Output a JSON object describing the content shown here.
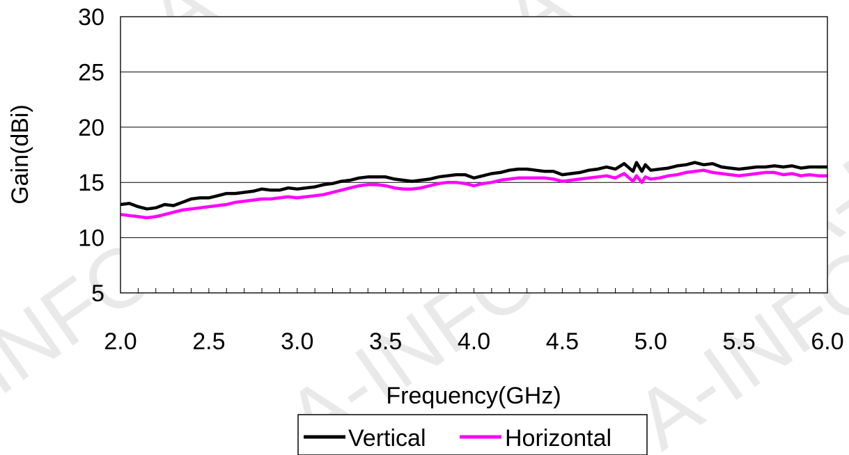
{
  "watermark": "A-INFO",
  "chart_data": {
    "type": "line",
    "title": "",
    "xlabel": "Frequency(GHz)",
    "ylabel": "Gain(dBi)",
    "xlim": [
      2.0,
      6.0
    ],
    "ylim": [
      5,
      30
    ],
    "x_ticks": [
      "2.0",
      "2.5",
      "3.0",
      "3.5",
      "4.0",
      "4.5",
      "5.0",
      "5.5",
      "6.0"
    ],
    "y_ticks": [
      "5",
      "10",
      "15",
      "20",
      "25",
      "30"
    ],
    "grid": "horizontal",
    "legend_position": "bottom",
    "series": [
      {
        "name": "Vertical",
        "color": "#000000",
        "points": [
          [
            2.0,
            13.0
          ],
          [
            2.05,
            13.1
          ],
          [
            2.1,
            12.8
          ],
          [
            2.15,
            12.6
          ],
          [
            2.2,
            12.7
          ],
          [
            2.25,
            13.0
          ],
          [
            2.3,
            12.9
          ],
          [
            2.35,
            13.2
          ],
          [
            2.4,
            13.5
          ],
          [
            2.45,
            13.6
          ],
          [
            2.5,
            13.6
          ],
          [
            2.55,
            13.8
          ],
          [
            2.6,
            14.0
          ],
          [
            2.65,
            14.0
          ],
          [
            2.7,
            14.1
          ],
          [
            2.75,
            14.2
          ],
          [
            2.8,
            14.4
          ],
          [
            2.85,
            14.3
          ],
          [
            2.9,
            14.3
          ],
          [
            2.95,
            14.5
          ],
          [
            3.0,
            14.4
          ],
          [
            3.05,
            14.5
          ],
          [
            3.1,
            14.6
          ],
          [
            3.15,
            14.8
          ],
          [
            3.2,
            14.9
          ],
          [
            3.25,
            15.1
          ],
          [
            3.3,
            15.2
          ],
          [
            3.35,
            15.4
          ],
          [
            3.4,
            15.5
          ],
          [
            3.45,
            15.5
          ],
          [
            3.5,
            15.5
          ],
          [
            3.55,
            15.3
          ],
          [
            3.6,
            15.2
          ],
          [
            3.65,
            15.1
          ],
          [
            3.7,
            15.2
          ],
          [
            3.75,
            15.3
          ],
          [
            3.8,
            15.5
          ],
          [
            3.85,
            15.6
          ],
          [
            3.9,
            15.7
          ],
          [
            3.95,
            15.7
          ],
          [
            4.0,
            15.4
          ],
          [
            4.05,
            15.6
          ],
          [
            4.1,
            15.8
          ],
          [
            4.15,
            15.9
          ],
          [
            4.2,
            16.1
          ],
          [
            4.25,
            16.2
          ],
          [
            4.3,
            16.2
          ],
          [
            4.35,
            16.1
          ],
          [
            4.4,
            16.0
          ],
          [
            4.45,
            16.0
          ],
          [
            4.5,
            15.7
          ],
          [
            4.55,
            15.8
          ],
          [
            4.6,
            15.9
          ],
          [
            4.65,
            16.1
          ],
          [
            4.7,
            16.2
          ],
          [
            4.75,
            16.4
          ],
          [
            4.8,
            16.2
          ],
          [
            4.85,
            16.7
          ],
          [
            4.9,
            16.0
          ],
          [
            4.92,
            16.8
          ],
          [
            4.95,
            16.0
          ],
          [
            4.97,
            16.6
          ],
          [
            5.0,
            16.1
          ],
          [
            5.05,
            16.2
          ],
          [
            5.1,
            16.3
          ],
          [
            5.15,
            16.5
          ],
          [
            5.2,
            16.6
          ],
          [
            5.25,
            16.8
          ],
          [
            5.3,
            16.6
          ],
          [
            5.35,
            16.7
          ],
          [
            5.4,
            16.4
          ],
          [
            5.45,
            16.3
          ],
          [
            5.5,
            16.2
          ],
          [
            5.55,
            16.3
          ],
          [
            5.6,
            16.4
          ],
          [
            5.65,
            16.4
          ],
          [
            5.7,
            16.5
          ],
          [
            5.75,
            16.4
          ],
          [
            5.8,
            16.5
          ],
          [
            5.85,
            16.3
          ],
          [
            5.9,
            16.4
          ],
          [
            5.95,
            16.4
          ],
          [
            6.0,
            16.4
          ]
        ]
      },
      {
        "name": "Horizontal",
        "color": "#ff00ff",
        "points": [
          [
            2.0,
            12.1
          ],
          [
            2.05,
            12.0
          ],
          [
            2.1,
            11.9
          ],
          [
            2.15,
            11.8
          ],
          [
            2.2,
            11.9
          ],
          [
            2.25,
            12.1
          ],
          [
            2.3,
            12.3
          ],
          [
            2.35,
            12.5
          ],
          [
            2.4,
            12.6
          ],
          [
            2.45,
            12.7
          ],
          [
            2.5,
            12.8
          ],
          [
            2.55,
            12.9
          ],
          [
            2.6,
            13.0
          ],
          [
            2.65,
            13.2
          ],
          [
            2.7,
            13.3
          ],
          [
            2.75,
            13.4
          ],
          [
            2.8,
            13.5
          ],
          [
            2.85,
            13.5
          ],
          [
            2.9,
            13.6
          ],
          [
            2.95,
            13.7
          ],
          [
            3.0,
            13.6
          ],
          [
            3.05,
            13.7
          ],
          [
            3.1,
            13.8
          ],
          [
            3.15,
            13.9
          ],
          [
            3.2,
            14.1
          ],
          [
            3.25,
            14.3
          ],
          [
            3.3,
            14.5
          ],
          [
            3.35,
            14.7
          ],
          [
            3.4,
            14.8
          ],
          [
            3.45,
            14.8
          ],
          [
            3.5,
            14.7
          ],
          [
            3.55,
            14.5
          ],
          [
            3.6,
            14.4
          ],
          [
            3.65,
            14.4
          ],
          [
            3.7,
            14.5
          ],
          [
            3.75,
            14.7
          ],
          [
            3.8,
            14.9
          ],
          [
            3.85,
            15.0
          ],
          [
            3.9,
            15.0
          ],
          [
            3.95,
            14.9
          ],
          [
            4.0,
            14.7
          ],
          [
            4.05,
            14.9
          ],
          [
            4.1,
            15.0
          ],
          [
            4.15,
            15.2
          ],
          [
            4.2,
            15.3
          ],
          [
            4.25,
            15.4
          ],
          [
            4.3,
            15.4
          ],
          [
            4.35,
            15.4
          ],
          [
            4.4,
            15.4
          ],
          [
            4.45,
            15.3
          ],
          [
            4.5,
            15.1
          ],
          [
            4.55,
            15.2
          ],
          [
            4.6,
            15.3
          ],
          [
            4.65,
            15.4
          ],
          [
            4.7,
            15.5
          ],
          [
            4.75,
            15.6
          ],
          [
            4.8,
            15.4
          ],
          [
            4.85,
            15.8
          ],
          [
            4.9,
            15.1
          ],
          [
            4.92,
            15.6
          ],
          [
            4.95,
            15.0
          ],
          [
            4.97,
            15.5
          ],
          [
            5.0,
            15.3
          ],
          [
            5.05,
            15.4
          ],
          [
            5.1,
            15.6
          ],
          [
            5.15,
            15.7
          ],
          [
            5.2,
            15.9
          ],
          [
            5.25,
            16.0
          ],
          [
            5.3,
            16.1
          ],
          [
            5.35,
            15.9
          ],
          [
            5.4,
            15.8
          ],
          [
            5.45,
            15.7
          ],
          [
            5.5,
            15.6
          ],
          [
            5.55,
            15.7
          ],
          [
            5.6,
            15.8
          ],
          [
            5.65,
            15.9
          ],
          [
            5.7,
            15.9
          ],
          [
            5.75,
            15.7
          ],
          [
            5.8,
            15.8
          ],
          [
            5.85,
            15.6
          ],
          [
            5.9,
            15.7
          ],
          [
            5.95,
            15.6
          ],
          [
            6.0,
            15.6
          ]
        ]
      }
    ]
  }
}
